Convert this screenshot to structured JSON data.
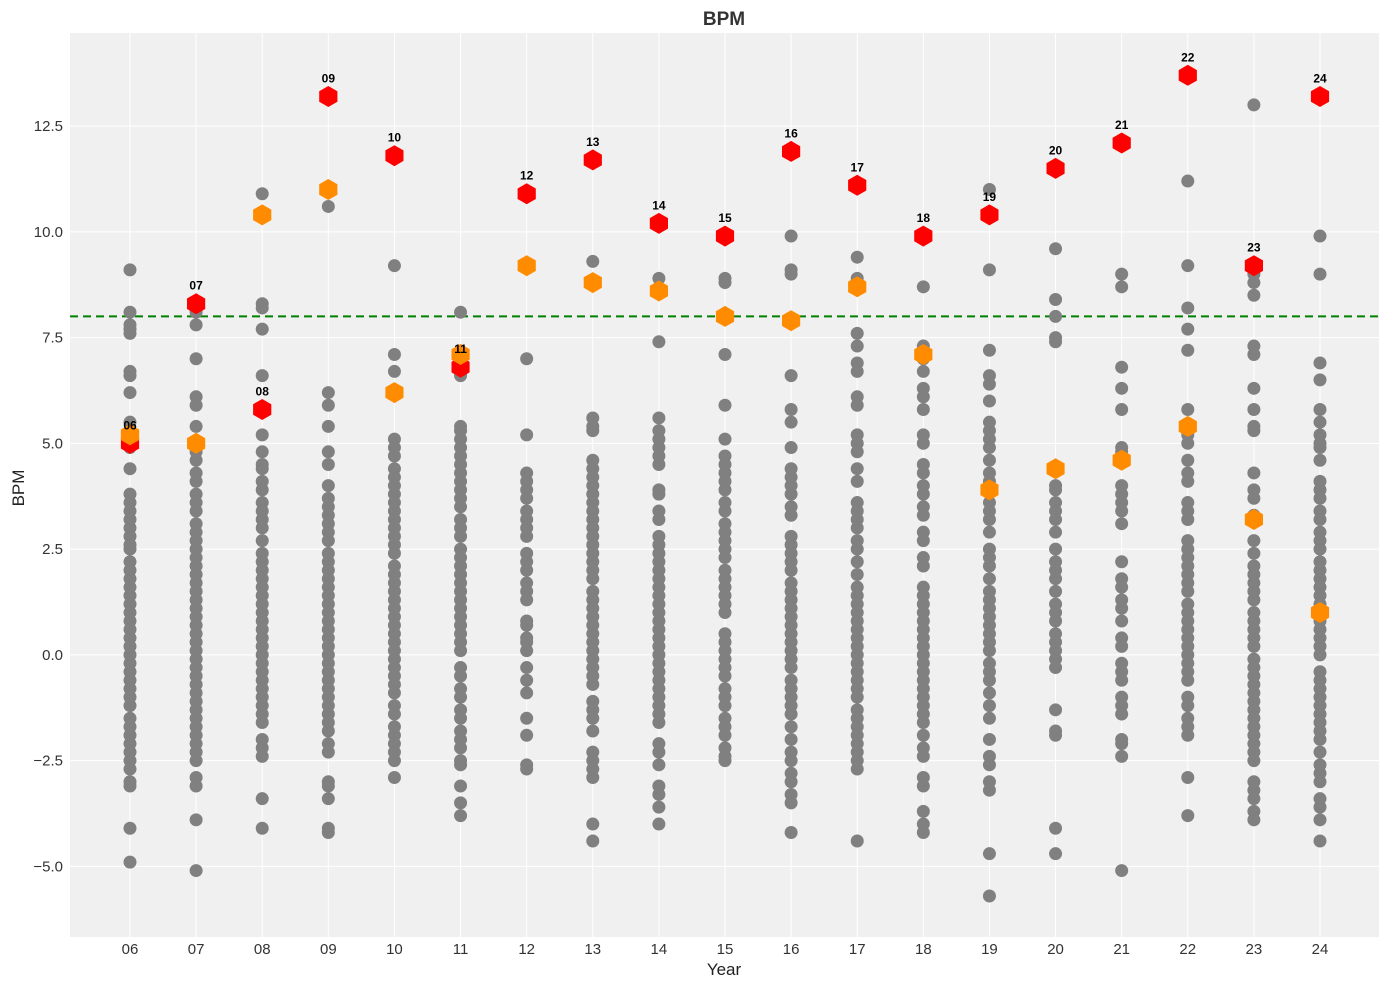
{
  "chart_data": {
    "type": "scatter",
    "title": "BPM",
    "xlabel": "Year",
    "ylabel": "BPM",
    "categories": [
      "06",
      "07",
      "08",
      "09",
      "10",
      "11",
      "12",
      "13",
      "14",
      "15",
      "16",
      "17",
      "18",
      "19",
      "20",
      "21",
      "22",
      "23",
      "24"
    ],
    "ylim": [
      -6.67,
      14.7
    ],
    "yticks": [
      -5.0,
      -2.5,
      0.0,
      2.5,
      5.0,
      7.5,
      10.0,
      12.5
    ],
    "ytick_labels": [
      "−5.0",
      "−2.5",
      "0.0",
      "2.5",
      "5.0",
      "7.5",
      "10.0",
      "12.5"
    ],
    "grid": true,
    "reference_line": {
      "y": 8.0,
      "style": "dashed",
      "color": "#008000"
    },
    "colors": {
      "background": "#f0f0f0",
      "grid": "#ffffff",
      "all_players": "#808080",
      "max": "#ff0000",
      "second": "#ff8c00"
    },
    "series": [
      {
        "name": "all",
        "marker": "circle",
        "points": {
          "06": [
            9.1,
            8.1,
            7.8,
            7.7,
            7.6,
            6.7,
            6.6,
            6.2,
            5.5,
            4.9,
            4.4,
            3.8,
            3.6,
            3.4,
            3.2,
            3.0,
            2.8,
            2.6,
            2.5,
            2.2,
            2.0,
            1.8,
            1.6,
            1.4,
            1.2,
            1.0,
            0.8,
            0.6,
            0.4,
            0.2,
            0.0,
            -0.2,
            -0.4,
            -0.6,
            -0.8,
            -1.0,
            -1.2,
            -1.5,
            -1.7,
            -1.9,
            -2.1,
            -2.3,
            -2.5,
            -2.7,
            -3.0,
            -3.1,
            -4.1,
            -4.9
          ],
          "07": [
            8.1,
            7.8,
            7.0,
            6.1,
            5.9,
            5.4,
            4.8,
            4.6,
            4.3,
            4.1,
            3.8,
            3.6,
            3.4,
            3.1,
            2.9,
            2.7,
            2.5,
            2.3,
            2.1,
            1.9,
            1.7,
            1.5,
            1.3,
            1.1,
            0.9,
            0.7,
            0.5,
            0.3,
            0.1,
            -0.1,
            -0.3,
            -0.5,
            -0.7,
            -0.9,
            -1.1,
            -1.3,
            -1.5,
            -1.7,
            -1.9,
            -2.1,
            -2.3,
            -2.5,
            -2.9,
            -3.1,
            -3.9,
            -5.1
          ],
          "08": [
            10.9,
            8.3,
            8.2,
            7.7,
            6.6,
            5.2,
            4.8,
            4.5,
            4.4,
            4.1,
            3.9,
            3.6,
            3.4,
            3.2,
            3.0,
            2.7,
            2.4,
            2.2,
            2.0,
            1.8,
            1.6,
            1.4,
            1.2,
            1.0,
            0.8,
            0.6,
            0.4,
            0.2,
            0.0,
            -0.2,
            -0.4,
            -0.6,
            -0.8,
            -1.0,
            -1.2,
            -1.4,
            -1.6,
            -2.0,
            -2.2,
            -2.4,
            -3.4,
            -4.1
          ],
          "09": [
            10.6,
            6.2,
            5.9,
            5.4,
            4.8,
            4.5,
            4.0,
            3.7,
            3.5,
            3.3,
            3.1,
            2.9,
            2.7,
            2.4,
            2.2,
            2.0,
            1.8,
            1.6,
            1.4,
            1.2,
            1.0,
            0.8,
            0.6,
            0.4,
            0.2,
            0.0,
            -0.2,
            -0.4,
            -0.6,
            -0.8,
            -1.0,
            -1.2,
            -1.4,
            -1.6,
            -1.8,
            -2.1,
            -2.3,
            -3.0,
            -3.1,
            -3.4,
            -4.1,
            -4.2
          ],
          "10": [
            9.2,
            7.1,
            6.7,
            5.1,
            4.9,
            4.7,
            4.4,
            4.2,
            4.0,
            3.8,
            3.6,
            3.4,
            3.2,
            3.0,
            2.8,
            2.6,
            2.4,
            2.1,
            1.9,
            1.7,
            1.5,
            1.3,
            1.1,
            0.9,
            0.7,
            0.5,
            0.3,
            0.1,
            -0.1,
            -0.3,
            -0.5,
            -0.7,
            -0.9,
            -1.2,
            -1.4,
            -1.7,
            -1.9,
            -2.1,
            -2.3,
            -2.5,
            -2.9
          ],
          "11": [
            8.1,
            6.6,
            5.4,
            5.3,
            5.1,
            4.9,
            4.7,
            4.5,
            4.3,
            4.1,
            3.9,
            3.7,
            3.5,
            3.2,
            3.0,
            2.8,
            2.5,
            2.3,
            2.1,
            1.9,
            1.7,
            1.5,
            1.3,
            1.1,
            0.9,
            0.7,
            0.5,
            0.3,
            0.1,
            -0.3,
            -0.5,
            -0.8,
            -1.0,
            -1.3,
            -1.5,
            -1.8,
            -2.0,
            -2.2,
            -2.5,
            -2.6,
            -3.1,
            -3.5,
            -3.8
          ],
          "12": [
            7.0,
            5.2,
            4.3,
            4.1,
            3.9,
            3.7,
            3.4,
            3.2,
            3.0,
            2.8,
            2.4,
            2.2,
            2.0,
            1.7,
            1.5,
            1.3,
            0.8,
            0.7,
            0.4,
            0.3,
            0.1,
            -0.3,
            -0.6,
            -0.9,
            -1.5,
            -1.9,
            -2.6,
            -2.7
          ],
          "13": [
            9.3,
            5.6,
            5.4,
            5.3,
            4.6,
            4.4,
            4.2,
            4.0,
            3.8,
            3.6,
            3.4,
            3.2,
            3.0,
            2.8,
            2.6,
            2.4,
            2.2,
            2.0,
            1.8,
            1.5,
            1.3,
            1.1,
            0.9,
            0.7,
            0.5,
            0.3,
            0.1,
            -0.1,
            -0.3,
            -0.5,
            -0.7,
            -1.1,
            -1.3,
            -1.5,
            -1.8,
            -2.3,
            -2.5,
            -2.7,
            -2.9,
            -4.0,
            -4.4
          ],
          "14": [
            8.9,
            7.4,
            5.6,
            5.3,
            5.1,
            4.9,
            4.7,
            4.5,
            3.9,
            3.8,
            3.4,
            3.2,
            2.8,
            2.6,
            2.4,
            2.2,
            2.0,
            1.8,
            1.6,
            1.4,
            1.2,
            1.0,
            0.8,
            0.6,
            0.4,
            0.2,
            0.0,
            -0.2,
            -0.4,
            -0.6,
            -0.8,
            -1.0,
            -1.2,
            -1.4,
            -1.6,
            -2.1,
            -2.3,
            -2.6,
            -3.1,
            -3.3,
            -3.6,
            -4.0
          ],
          "15": [
            8.9,
            8.8,
            8.0,
            7.1,
            5.9,
            5.1,
            4.7,
            4.5,
            4.3,
            4.1,
            3.9,
            3.6,
            3.4,
            3.1,
            2.9,
            2.7,
            2.5,
            2.3,
            2.0,
            1.8,
            1.6,
            1.4,
            1.2,
            1.0,
            0.5,
            0.3,
            0.1,
            -0.1,
            -0.3,
            -0.5,
            -0.8,
            -1.0,
            -1.2,
            -1.5,
            -1.7,
            -1.9,
            -2.2,
            -2.4,
            -2.5
          ],
          "16": [
            9.9,
            9.1,
            9.0,
            6.6,
            5.8,
            5.5,
            4.9,
            4.4,
            4.2,
            4.0,
            3.8,
            3.5,
            3.3,
            2.8,
            2.6,
            2.4,
            2.2,
            2.0,
            1.7,
            1.5,
            1.3,
            1.1,
            0.9,
            0.7,
            0.5,
            0.3,
            0.1,
            -0.1,
            -0.3,
            -0.6,
            -0.8,
            -1.0,
            -1.2,
            -1.4,
            -1.7,
            -2.0,
            -2.3,
            -2.5,
            -2.8,
            -3.0,
            -3.3,
            -3.5,
            -4.2
          ],
          "17": [
            9.4,
            8.9,
            8.8,
            7.6,
            7.3,
            6.9,
            6.7,
            6.1,
            5.9,
            5.2,
            5.0,
            4.8,
            4.4,
            4.1,
            3.6,
            3.4,
            3.2,
            3.0,
            2.7,
            2.5,
            2.2,
            1.9,
            1.6,
            1.4,
            1.2,
            1.0,
            0.8,
            0.6,
            0.4,
            0.2,
            0.0,
            -0.2,
            -0.4,
            -0.6,
            -0.8,
            -1.0,
            -1.3,
            -1.5,
            -1.7,
            -1.9,
            -2.1,
            -2.3,
            -2.5,
            -2.7,
            -4.4
          ],
          "18": [
            8.7,
            7.3,
            7.0,
            6.7,
            6.3,
            6.1,
            5.8,
            5.2,
            5.0,
            4.5,
            4.3,
            4.0,
            3.8,
            3.5,
            3.3,
            2.9,
            2.7,
            2.3,
            2.1,
            1.6,
            1.4,
            1.2,
            1.0,
            0.8,
            0.6,
            0.4,
            0.2,
            0.0,
            -0.2,
            -0.4,
            -0.6,
            -0.8,
            -1.0,
            -1.2,
            -1.4,
            -1.6,
            -1.9,
            -2.2,
            -2.4,
            -2.9,
            -3.1,
            -3.7,
            -4.0,
            -4.2
          ],
          "19": [
            11.0,
            9.1,
            7.2,
            6.6,
            6.4,
            6.0,
            5.5,
            5.3,
            5.1,
            4.9,
            4.6,
            4.3,
            4.1,
            3.6,
            3.4,
            3.2,
            2.9,
            2.5,
            2.3,
            2.1,
            1.8,
            1.5,
            1.3,
            1.1,
            0.9,
            0.7,
            0.5,
            0.3,
            0.1,
            -0.2,
            -0.4,
            -0.6,
            -0.9,
            -1.2,
            -1.5,
            -2.0,
            -2.4,
            -2.6,
            -3.0,
            -3.2,
            -4.7,
            -5.7
          ],
          "20": [
            9.6,
            8.4,
            8.0,
            7.5,
            7.4,
            4.0,
            3.9,
            3.6,
            3.4,
            3.2,
            2.9,
            2.5,
            2.2,
            2.0,
            1.8,
            1.5,
            1.2,
            1.0,
            0.8,
            0.5,
            0.3,
            0.1,
            -0.1,
            -0.3,
            -1.3,
            -1.8,
            -1.9,
            -4.1,
            -4.7
          ],
          "21": [
            9.0,
            8.7,
            6.8,
            6.3,
            5.8,
            4.9,
            4.8,
            4.0,
            3.8,
            3.6,
            3.4,
            3.1,
            2.2,
            1.8,
            1.6,
            1.3,
            1.1,
            0.8,
            0.4,
            0.2,
            -0.2,
            -0.4,
            -0.6,
            -1.0,
            -1.2,
            -1.4,
            -2.0,
            -2.1,
            -2.4,
            -5.1
          ],
          "22": [
            11.2,
            9.2,
            8.2,
            7.7,
            7.2,
            5.8,
            5.2,
            5.0,
            4.6,
            4.3,
            4.1,
            3.6,
            3.4,
            3.2,
            2.7,
            2.5,
            2.3,
            2.1,
            1.9,
            1.7,
            1.5,
            1.2,
            1.0,
            0.8,
            0.6,
            0.4,
            0.2,
            0.0,
            -0.2,
            -0.4,
            -0.6,
            -1.0,
            -1.2,
            -1.5,
            -1.7,
            -1.9,
            -2.9,
            -3.8
          ],
          "23": [
            13.0,
            9.0,
            8.8,
            8.5,
            7.3,
            7.1,
            6.3,
            5.8,
            5.4,
            5.3,
            4.3,
            3.9,
            3.7,
            3.3,
            2.7,
            2.4,
            2.1,
            1.9,
            1.7,
            1.5,
            1.3,
            1.0,
            0.8,
            0.6,
            0.4,
            0.2,
            -0.1,
            -0.3,
            -0.5,
            -0.7,
            -0.9,
            -1.1,
            -1.3,
            -1.5,
            -1.7,
            -1.9,
            -2.1,
            -2.3,
            -2.5,
            -3.0,
            -3.2,
            -3.4,
            -3.7,
            -3.9
          ],
          "24": [
            9.9,
            9.0,
            6.9,
            6.5,
            5.8,
            5.5,
            5.2,
            5.0,
            4.9,
            4.6,
            4.1,
            3.9,
            3.7,
            3.4,
            3.2,
            2.9,
            2.7,
            2.5,
            2.2,
            2.0,
            1.8,
            1.6,
            1.4,
            1.2,
            0.8,
            0.6,
            0.4,
            0.2,
            0.0,
            -0.4,
            -0.6,
            -0.8,
            -1.0,
            -1.2,
            -1.4,
            -1.6,
            -1.8,
            -2.0,
            -2.3,
            -2.6,
            -2.8,
            -3.0,
            -3.4,
            -3.6,
            -3.9,
            -4.4
          ]
        }
      },
      {
        "name": "max",
        "marker": "hexagon",
        "values": [
          5.0,
          8.3,
          5.8,
          13.2,
          11.8,
          6.8,
          10.9,
          11.7,
          10.2,
          9.9,
          11.9,
          11.1,
          9.9,
          10.4,
          11.5,
          12.1,
          13.7,
          9.2,
          13.2
        ],
        "annotations": [
          "06",
          "07",
          "08",
          "09",
          "10",
          "11",
          "12",
          "13",
          "14",
          "15",
          "16",
          "17",
          "18",
          "19",
          "20",
          "21",
          "22",
          "23",
          "24"
        ]
      },
      {
        "name": "second",
        "marker": "hexagon",
        "values": [
          5.2,
          5.0,
          10.4,
          11.0,
          6.2,
          7.1,
          9.2,
          8.8,
          8.6,
          8.0,
          7.9,
          8.7,
          7.1,
          3.9,
          4.4,
          4.6,
          5.4,
          3.2,
          1.0
        ]
      }
    ]
  }
}
